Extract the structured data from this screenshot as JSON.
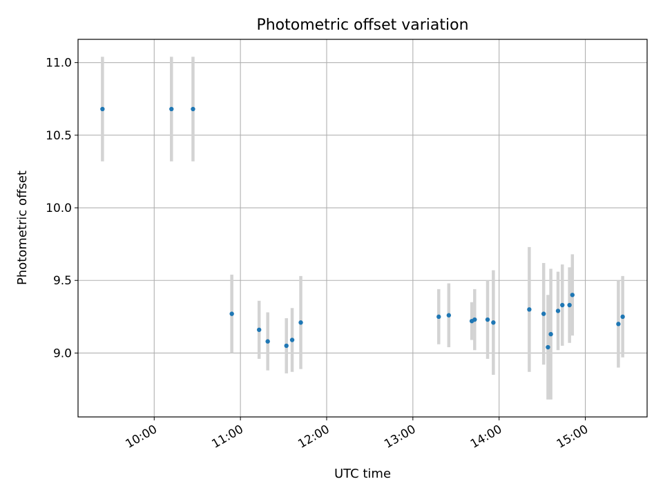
{
  "chart_data": {
    "type": "scatter",
    "title": "Photometric offset variation",
    "xlabel": "UTC time",
    "ylabel": "Photometric offset",
    "x_unit": "hours (UTC)",
    "xlim": [
      "09:07",
      "15:43"
    ],
    "ylim": [
      8.56,
      11.16
    ],
    "x_ticks": [
      "10:00",
      "11:00",
      "12:00",
      "13:00",
      "14:00",
      "15:00"
    ],
    "y_ticks": [
      "9.0",
      "9.5",
      "10.0",
      "10.5",
      "11.0"
    ],
    "grid": true,
    "legend": "none",
    "colors": {
      "point": "#1f77b4",
      "errorbar": "#d3d3d3",
      "grid": "#b0b0b0"
    },
    "points": [
      {
        "x": "09:24",
        "y": 10.68,
        "err": 0.36
      },
      {
        "x": "10:12",
        "y": 10.68,
        "err": 0.36
      },
      {
        "x": "10:27",
        "y": 10.68,
        "err": 0.36
      },
      {
        "x": "10:54",
        "y": 9.27,
        "err": 0.27
      },
      {
        "x": "11:13",
        "y": 9.16,
        "err": 0.2
      },
      {
        "x": "11:19",
        "y": 9.08,
        "err": 0.2
      },
      {
        "x": "11:32",
        "y": 9.05,
        "err": 0.19
      },
      {
        "x": "11:36",
        "y": 9.09,
        "err": 0.22
      },
      {
        "x": "11:42",
        "y": 9.21,
        "err": 0.32
      },
      {
        "x": "13:18",
        "y": 9.25,
        "err": 0.19
      },
      {
        "x": "13:25",
        "y": 9.26,
        "err": 0.22
      },
      {
        "x": "13:41",
        "y": 9.22,
        "err": 0.13
      },
      {
        "x": "13:43",
        "y": 9.23,
        "err": 0.21
      },
      {
        "x": "13:52",
        "y": 9.23,
        "err": 0.27
      },
      {
        "x": "13:56",
        "y": 9.21,
        "err": 0.36
      },
      {
        "x": "14:21",
        "y": 9.3,
        "err": 0.43
      },
      {
        "x": "14:31",
        "y": 9.27,
        "err": 0.35
      },
      {
        "x": "14:34",
        "y": 9.04,
        "err": 0.36
      },
      {
        "x": "14:36",
        "y": 9.13,
        "err": 0.45
      },
      {
        "x": "14:41",
        "y": 9.29,
        "err": 0.27
      },
      {
        "x": "14:44",
        "y": 9.33,
        "err": 0.28
      },
      {
        "x": "14:49",
        "y": 9.33,
        "err": 0.26
      },
      {
        "x": "14:51",
        "y": 9.4,
        "err": 0.28
      },
      {
        "x": "15:23",
        "y": 9.2,
        "err": 0.3
      },
      {
        "x": "15:26",
        "y": 9.25,
        "err": 0.28
      }
    ]
  }
}
